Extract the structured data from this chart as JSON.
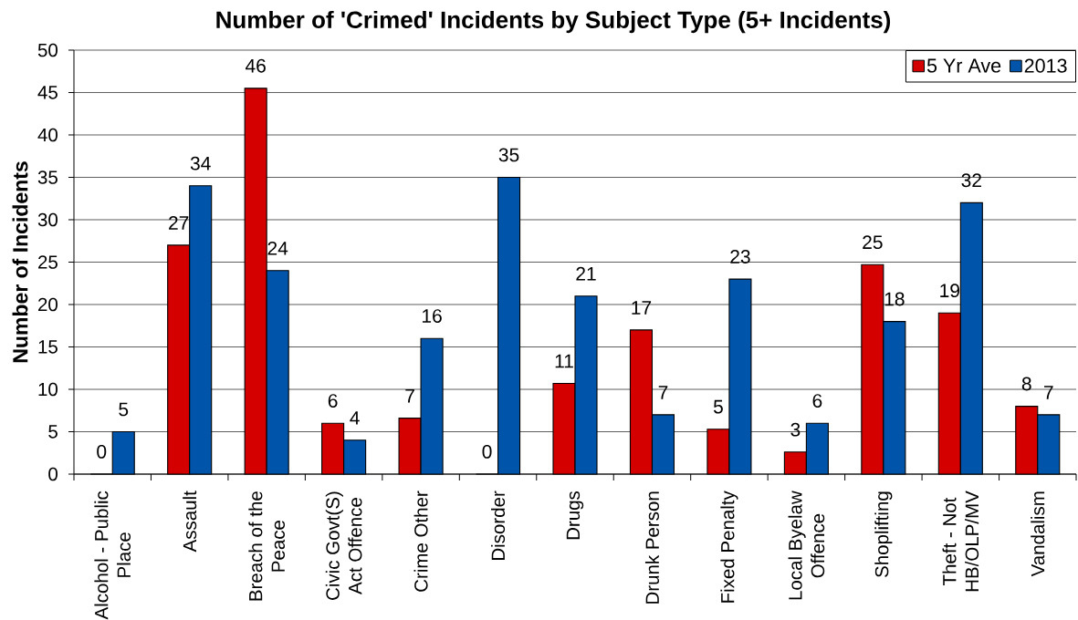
{
  "chart_data": {
    "type": "bar",
    "title": "Number of 'Crimed' Incidents by Subject Type (5+ Incidents)",
    "ylabel": "Number of Incidents",
    "categories": [
      "Alcohol - Public Place",
      "Assault",
      "Breach of the Peace",
      "Civic Govt(S) Act Offence",
      "Crime Other",
      "Disorder",
      "Drugs",
      "Drunk Person",
      "Fixed Penalty",
      "Local Byelaw Offence",
      "Shoplifting",
      "Theft - Not HB/OLP/MV",
      "Vandalism"
    ],
    "series": [
      {
        "name": "5 Yr Ave",
        "color": "#d40000",
        "values": [
          0,
          27,
          45.5,
          6,
          6.6,
          0,
          10.7,
          17,
          5.3,
          2.6,
          24.7,
          19,
          8
        ],
        "value_labels": [
          "0",
          "27",
          "46",
          "6",
          "7",
          "0",
          "11",
          "17",
          "5",
          "3",
          "25",
          "19",
          "8"
        ]
      },
      {
        "name": "2013",
        "color": "#0055aa",
        "values": [
          5,
          34,
          24,
          4,
          16,
          35,
          21,
          7,
          23,
          6,
          18,
          32,
          7
        ],
        "value_labels": [
          "5",
          "34",
          "24",
          "4",
          "16",
          "35",
          "21",
          "7",
          "23",
          "6",
          "18",
          "32",
          "7"
        ]
      }
    ],
    "ylim": [
      0,
      50
    ],
    "yticks": [
      0,
      5,
      10,
      15,
      20,
      25,
      30,
      35,
      40,
      45,
      50
    ],
    "grid": "y",
    "legend": "top right"
  }
}
